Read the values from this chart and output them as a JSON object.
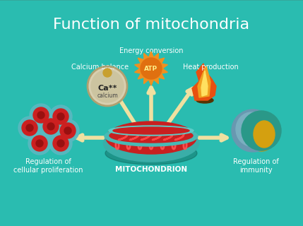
{
  "title": "Function of mitochondria",
  "title_fontsize": 16,
  "title_color": "white",
  "center_label": "MITOCHONDRION",
  "labels": {
    "energy": "Energy conversion",
    "calcium": "Calcium balance",
    "heat": "Heat production",
    "proliferation": "Regulation of\ncellular proliferation",
    "immunity": "Regulation of\nimmunity"
  },
  "arrow_color": "#f0e0a0",
  "bg_top": "#4ec8c0",
  "bg_bottom": "#1a8878"
}
